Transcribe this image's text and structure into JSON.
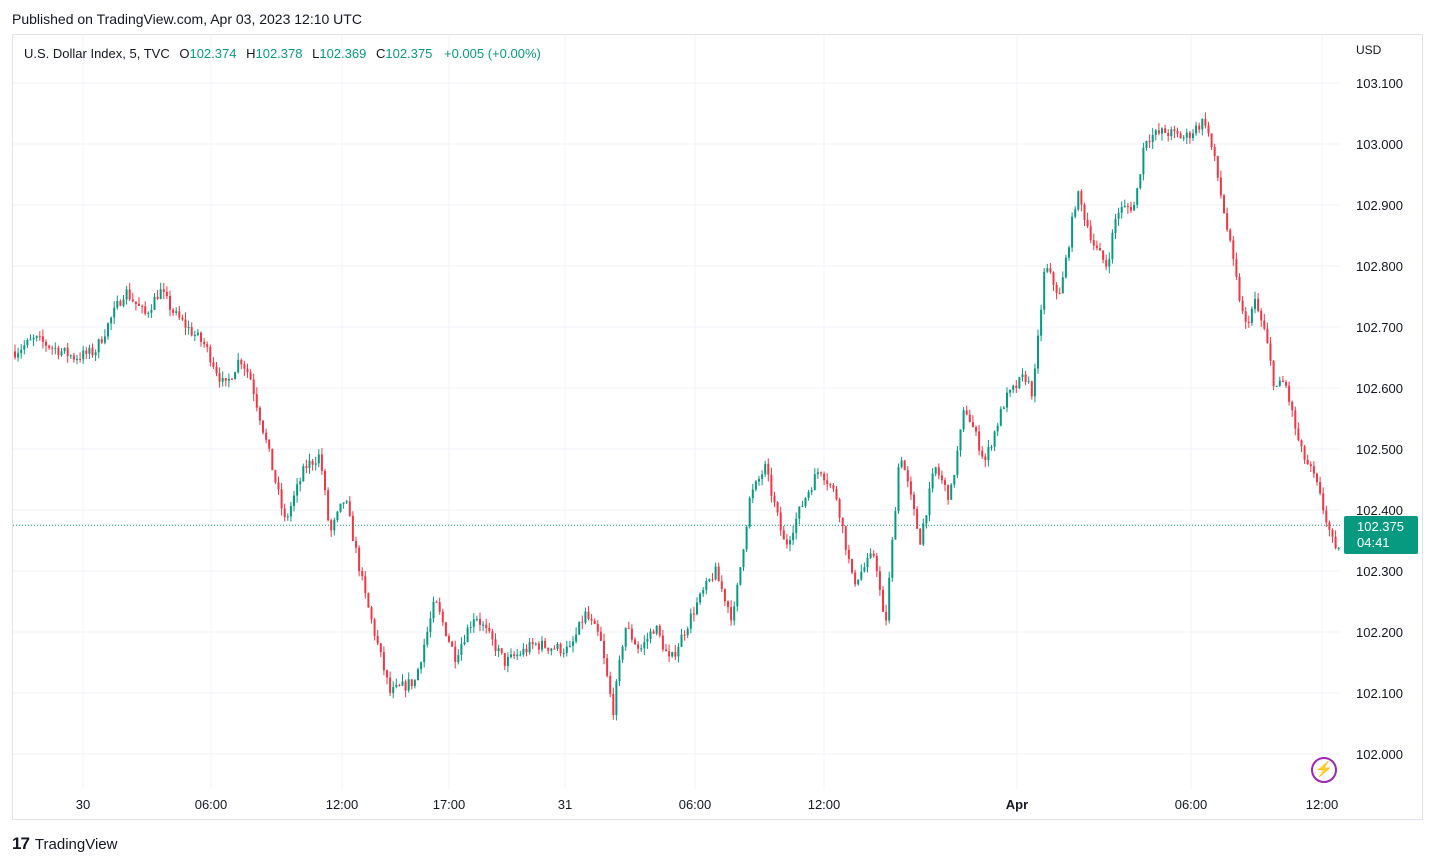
{
  "published": "Published on TradingView.com, Apr 03, 2023 12:10 UTC",
  "legend": {
    "symbol": "U.S. Dollar Index, 5, TVC",
    "open_label": "O",
    "open": "102.374",
    "high_label": "H",
    "high": "102.378",
    "low_label": "L",
    "low": "102.369",
    "close_label": "C",
    "close": "102.375",
    "change": "+0.005 (+0.00%)"
  },
  "currency": "USD",
  "current_price": {
    "value": "102.375",
    "countdown": "04:41"
  },
  "footer": {
    "logo_text": "TradingView"
  },
  "colors": {
    "up": "#089981",
    "down": "#f23645",
    "grid": "#f0f3fa",
    "price_line": "#089981"
  },
  "icons": {
    "logo": "tradingview-logo-icon",
    "alert": "lightning-icon"
  },
  "chart_data": {
    "type": "candlestick",
    "title": "",
    "ylim": [
      101.97,
      103.12
    ],
    "y_ticks": [
      "103.100",
      "103.000",
      "102.900",
      "102.800",
      "102.700",
      "102.600",
      "102.500",
      "102.400",
      "102.300",
      "102.200",
      "102.100",
      "102.000"
    ],
    "x_ticks": [
      "30",
      "06:00",
      "12:00",
      "17:00",
      "31",
      "06:00",
      "12:00",
      "Apr",
      "06:00",
      "12:00"
    ],
    "grid": true,
    "price_waypoints": [
      {
        "t": 0,
        "p": 102.66
      },
      {
        "t": 20,
        "p": 102.68
      },
      {
        "t": 60,
        "p": 102.65
      },
      {
        "t": 80,
        "p": 102.66
      },
      {
        "t": 110,
        "p": 102.76
      },
      {
        "t": 130,
        "p": 102.72
      },
      {
        "t": 145,
        "p": 102.76
      },
      {
        "t": 160,
        "p": 102.72
      },
      {
        "t": 190,
        "p": 102.67
      },
      {
        "t": 210,
        "p": 102.6
      },
      {
        "t": 225,
        "p": 102.65
      },
      {
        "t": 235,
        "p": 102.62
      },
      {
        "t": 250,
        "p": 102.52
      },
      {
        "t": 270,
        "p": 102.38
      },
      {
        "t": 290,
        "p": 102.47
      },
      {
        "t": 305,
        "p": 102.49
      },
      {
        "t": 315,
        "p": 102.36
      },
      {
        "t": 330,
        "p": 102.42
      },
      {
        "t": 350,
        "p": 102.26
      },
      {
        "t": 375,
        "p": 102.1
      },
      {
        "t": 400,
        "p": 102.12
      },
      {
        "t": 420,
        "p": 102.25
      },
      {
        "t": 440,
        "p": 102.16
      },
      {
        "t": 460,
        "p": 102.23
      },
      {
        "t": 490,
        "p": 102.15
      },
      {
        "t": 520,
        "p": 102.18
      },
      {
        "t": 555,
        "p": 102.17
      },
      {
        "t": 570,
        "p": 102.23
      },
      {
        "t": 585,
        "p": 102.19
      },
      {
        "t": 598,
        "p": 102.07
      },
      {
        "t": 610,
        "p": 102.21
      },
      {
        "t": 625,
        "p": 102.17
      },
      {
        "t": 640,
        "p": 102.21
      },
      {
        "t": 655,
        "p": 102.15
      },
      {
        "t": 680,
        "p": 102.24
      },
      {
        "t": 700,
        "p": 102.3
      },
      {
        "t": 718,
        "p": 102.22
      },
      {
        "t": 735,
        "p": 102.42
      },
      {
        "t": 750,
        "p": 102.47
      },
      {
        "t": 770,
        "p": 102.34
      },
      {
        "t": 790,
        "p": 102.42
      },
      {
        "t": 805,
        "p": 102.47
      },
      {
        "t": 822,
        "p": 102.42
      },
      {
        "t": 838,
        "p": 102.28
      },
      {
        "t": 860,
        "p": 102.33
      },
      {
        "t": 870,
        "p": 102.2
      },
      {
        "t": 885,
        "p": 102.5
      },
      {
        "t": 905,
        "p": 102.35
      },
      {
        "t": 920,
        "p": 102.47
      },
      {
        "t": 935,
        "p": 102.42
      },
      {
        "t": 950,
        "p": 102.57
      },
      {
        "t": 970,
        "p": 102.48
      },
      {
        "t": 990,
        "p": 102.58
      },
      {
        "t": 1010,
        "p": 102.62
      },
      {
        "t": 1018,
        "p": 102.59
      },
      {
        "t": 1030,
        "p": 102.8
      },
      {
        "t": 1045,
        "p": 102.75
      },
      {
        "t": 1062,
        "p": 102.92
      },
      {
        "t": 1080,
        "p": 102.83
      },
      {
        "t": 1092,
        "p": 102.8
      },
      {
        "t": 1102,
        "p": 102.89
      },
      {
        "t": 1120,
        "p": 102.9
      },
      {
        "t": 1130,
        "p": 103.01
      },
      {
        "t": 1150,
        "p": 103.02
      },
      {
        "t": 1170,
        "p": 103.01
      },
      {
        "t": 1190,
        "p": 103.04
      },
      {
        "t": 1200,
        "p": 102.97
      },
      {
        "t": 1210,
        "p": 102.88
      },
      {
        "t": 1222,
        "p": 102.77
      },
      {
        "t": 1230,
        "p": 102.7
      },
      {
        "t": 1240,
        "p": 102.74
      },
      {
        "t": 1250,
        "p": 102.69
      },
      {
        "t": 1260,
        "p": 102.6
      },
      {
        "t": 1270,
        "p": 102.61
      },
      {
        "t": 1285,
        "p": 102.5
      },
      {
        "t": 1300,
        "p": 102.45
      },
      {
        "t": 1312,
        "p": 102.38
      },
      {
        "t": 1322,
        "p": 102.32
      },
      {
        "t": 1326,
        "p": 102.375
      }
    ]
  }
}
